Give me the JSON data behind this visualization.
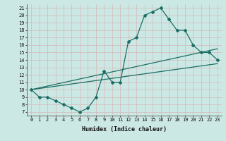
{
  "title": "",
  "xlabel": "Humidex (Indice chaleur)",
  "ylabel": "",
  "bg_color": "#cce8e4",
  "line_color": "#1a6e64",
  "grid_color": "#b8d8d4",
  "x_ticks": [
    0,
    1,
    2,
    3,
    4,
    5,
    6,
    7,
    8,
    9,
    10,
    11,
    12,
    13,
    14,
    15,
    16,
    17,
    18,
    19,
    20,
    21,
    22,
    23
  ],
  "y_ticks": [
    7,
    8,
    9,
    10,
    11,
    12,
    13,
    14,
    15,
    16,
    17,
    18,
    19,
    20,
    21
  ],
  "xlim": [
    -0.5,
    23.5
  ],
  "ylim": [
    6.5,
    21.5
  ],
  "series1_x": [
    0,
    1,
    2,
    3,
    4,
    5,
    6,
    7,
    8,
    9,
    10,
    11,
    12,
    13,
    14,
    15,
    16,
    17,
    18,
    19,
    20,
    21,
    22,
    23
  ],
  "series1_y": [
    10.0,
    9.0,
    9.0,
    8.5,
    8.0,
    7.5,
    7.0,
    7.5,
    9.0,
    12.5,
    11.0,
    11.0,
    16.5,
    17.0,
    20.0,
    20.5,
    21.0,
    19.5,
    18.0,
    18.0,
    16.0,
    15.0,
    15.0,
    14.0
  ],
  "series2_x": [
    0,
    23
  ],
  "series2_y": [
    10.0,
    13.5
  ],
  "series3_x": [
    0,
    23
  ],
  "series3_y": [
    10.0,
    15.5
  ],
  "xlabel_fontsize": 6.0,
  "tick_fontsize": 5.0
}
